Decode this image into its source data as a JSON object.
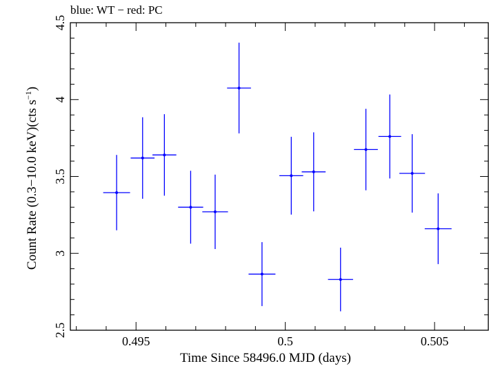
{
  "chart_data": {
    "type": "scatter",
    "title": "blue: WT − red: PC",
    "xlabel": "Time Since 58496.0 MJD (days)",
    "ylabel_main": "Count Rate (0.3−10.0 keV)(cts s",
    "ylabel_sup": "−1",
    "ylabel_tail": ")",
    "xlim": [
      0.4928,
      0.5068
    ],
    "ylim": [
      2.5,
      4.5
    ],
    "xticks": [
      {
        "value": 0.495,
        "label": "0.495"
      },
      {
        "value": 0.5,
        "label": "0.5"
      },
      {
        "value": 0.505,
        "label": "0.505"
      }
    ],
    "yticks": [
      {
        "value": 2.5,
        "label": "2.5"
      },
      {
        "value": 3,
        "label": "3"
      },
      {
        "value": 3.5,
        "label": "3.5"
      },
      {
        "value": 4,
        "label": "4"
      },
      {
        "value": 4.5,
        "label": "4.5"
      }
    ],
    "grid": false,
    "series": [
      {
        "color": "#0000ff",
        "points": [
          {
            "x": 0.49435,
            "xerr": 0.00045,
            "y": 3.395,
            "yerr": 0.245
          },
          {
            "x": 0.49522,
            "xerr": 0.0004,
            "y": 3.62,
            "yerr": 0.265
          },
          {
            "x": 0.49595,
            "xerr": 0.0004,
            "y": 3.64,
            "yerr": 0.265
          },
          {
            "x": 0.49683,
            "xerr": 0.00042,
            "y": 3.3,
            "yerr": 0.237
          },
          {
            "x": 0.49765,
            "xerr": 0.00043,
            "y": 3.27,
            "yerr": 0.242
          },
          {
            "x": 0.49845,
            "xerr": 0.0004,
            "y": 4.075,
            "yerr": 0.295
          },
          {
            "x": 0.49922,
            "xerr": 0.00045,
            "y": 2.865,
            "yerr": 0.208
          },
          {
            "x": 0.5002,
            "xerr": 0.0004,
            "y": 3.505,
            "yerr": 0.253
          },
          {
            "x": 0.50095,
            "xerr": 0.0004,
            "y": 3.53,
            "yerr": 0.257
          },
          {
            "x": 0.50185,
            "xerr": 0.00042,
            "y": 2.83,
            "yerr": 0.207
          },
          {
            "x": 0.5027,
            "xerr": 0.0004,
            "y": 3.675,
            "yerr": 0.265
          },
          {
            "x": 0.5035,
            "xerr": 0.00038,
            "y": 3.76,
            "yerr": 0.273
          },
          {
            "x": 0.50425,
            "xerr": 0.00043,
            "y": 3.52,
            "yerr": 0.255
          },
          {
            "x": 0.50512,
            "xerr": 0.00045,
            "y": 3.16,
            "yerr": 0.23
          }
        ]
      }
    ]
  }
}
